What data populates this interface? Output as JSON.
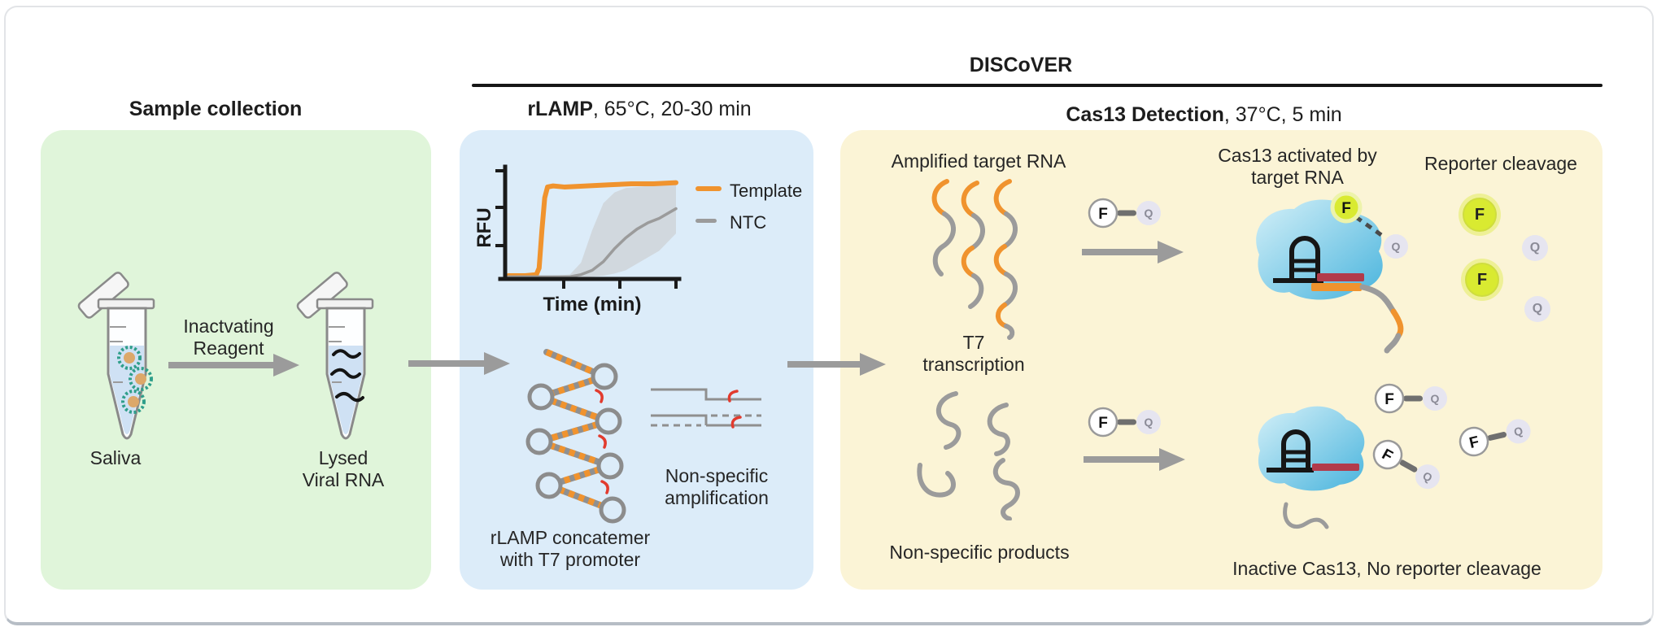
{
  "title": "DISCoVER",
  "headers": {
    "sample": "Sample collection",
    "rlamp_bold": "rLAMP",
    "rlamp_rest": ", 65°C, 20-30 min",
    "cas13_bold": "Cas13 Detection",
    "cas13_rest": ", 37°C, 5 min"
  },
  "sample_panel": {
    "reagent_line1": "Inactvating",
    "reagent_line2": "Reagent",
    "saliva": "Saliva",
    "lysed_line1": "Lysed",
    "lysed_line2": "Viral RNA"
  },
  "rlamp_panel": {
    "concatemer_line1": "rLAMP concatemer",
    "concatemer_line2": "with T7 promoter",
    "nonspecific_line1": "Non-specific",
    "nonspecific_line2": "amplification"
  },
  "cas13_panel": {
    "amplified": "Amplified target RNA",
    "t7_line1": "T7",
    "t7_line2": "transcription",
    "activated_line1": "Cas13 activated by",
    "activated_line2": "target RNA",
    "reporter_cleavage": "Reporter cleavage",
    "nonspecific_products": "Non-specific products",
    "inactive": "Inactive Cas13, No reporter cleavage"
  },
  "reporters": {
    "fluorophore": "F",
    "quencher": "Q"
  },
  "chart_data": {
    "type": "line",
    "title": "",
    "xlabel": "Time (min)",
    "ylabel": "RFU",
    "x_range": [
      0,
      30
    ],
    "y_range": [
      0,
      1
    ],
    "grid": false,
    "legend_position": "right",
    "x_ticks": [
      10,
      20,
      30
    ],
    "series": [
      {
        "name": "Template",
        "color": "#f0932e",
        "x": [
          0,
          3,
          5,
          5.5,
          6,
          6.5,
          7,
          8,
          10,
          14,
          18,
          22,
          26,
          30
        ],
        "y": [
          0.03,
          0.03,
          0.04,
          0.1,
          0.45,
          0.75,
          0.85,
          0.86,
          0.85,
          0.86,
          0.87,
          0.88,
          0.88,
          0.89
        ]
      },
      {
        "name": "NTC",
        "color": "#9b9b9b",
        "x": [
          0,
          8,
          11,
          13,
          15,
          17,
          19,
          21,
          23,
          25,
          27,
          30
        ],
        "y": [
          0.02,
          0.02,
          0.02,
          0.04,
          0.08,
          0.16,
          0.28,
          0.38,
          0.46,
          0.52,
          0.56,
          0.65
        ],
        "band_upper": [
          0.03,
          0.03,
          0.04,
          0.15,
          0.45,
          0.7,
          0.8,
          0.84,
          0.85,
          0.86,
          0.86,
          0.88
        ],
        "band_lower": [
          0.01,
          0.01,
          0.01,
          0.01,
          0.02,
          0.03,
          0.05,
          0.08,
          0.14,
          0.2,
          0.26,
          0.42
        ]
      }
    ]
  },
  "colors": {
    "panel_green": "#e0f5da",
    "panel_blue": "#dcecf9",
    "panel_yellow": "#fbf4d6",
    "orange": "#f0932e",
    "arrow_gray": "#9b9b9b",
    "strand_gray": "#9b9b9b",
    "hook_red": "#e23b2e",
    "crrna_red": "#b23b4b",
    "fluorophore_green": "#d9ea31",
    "quencher_lavender": "#e6e5f0",
    "cas13_blue_light": "#d4f0f8",
    "cas13_blue": "#49b4dd",
    "ntc_band_gray": "#c9c9c9",
    "text_dark": "#1d1d1d"
  }
}
